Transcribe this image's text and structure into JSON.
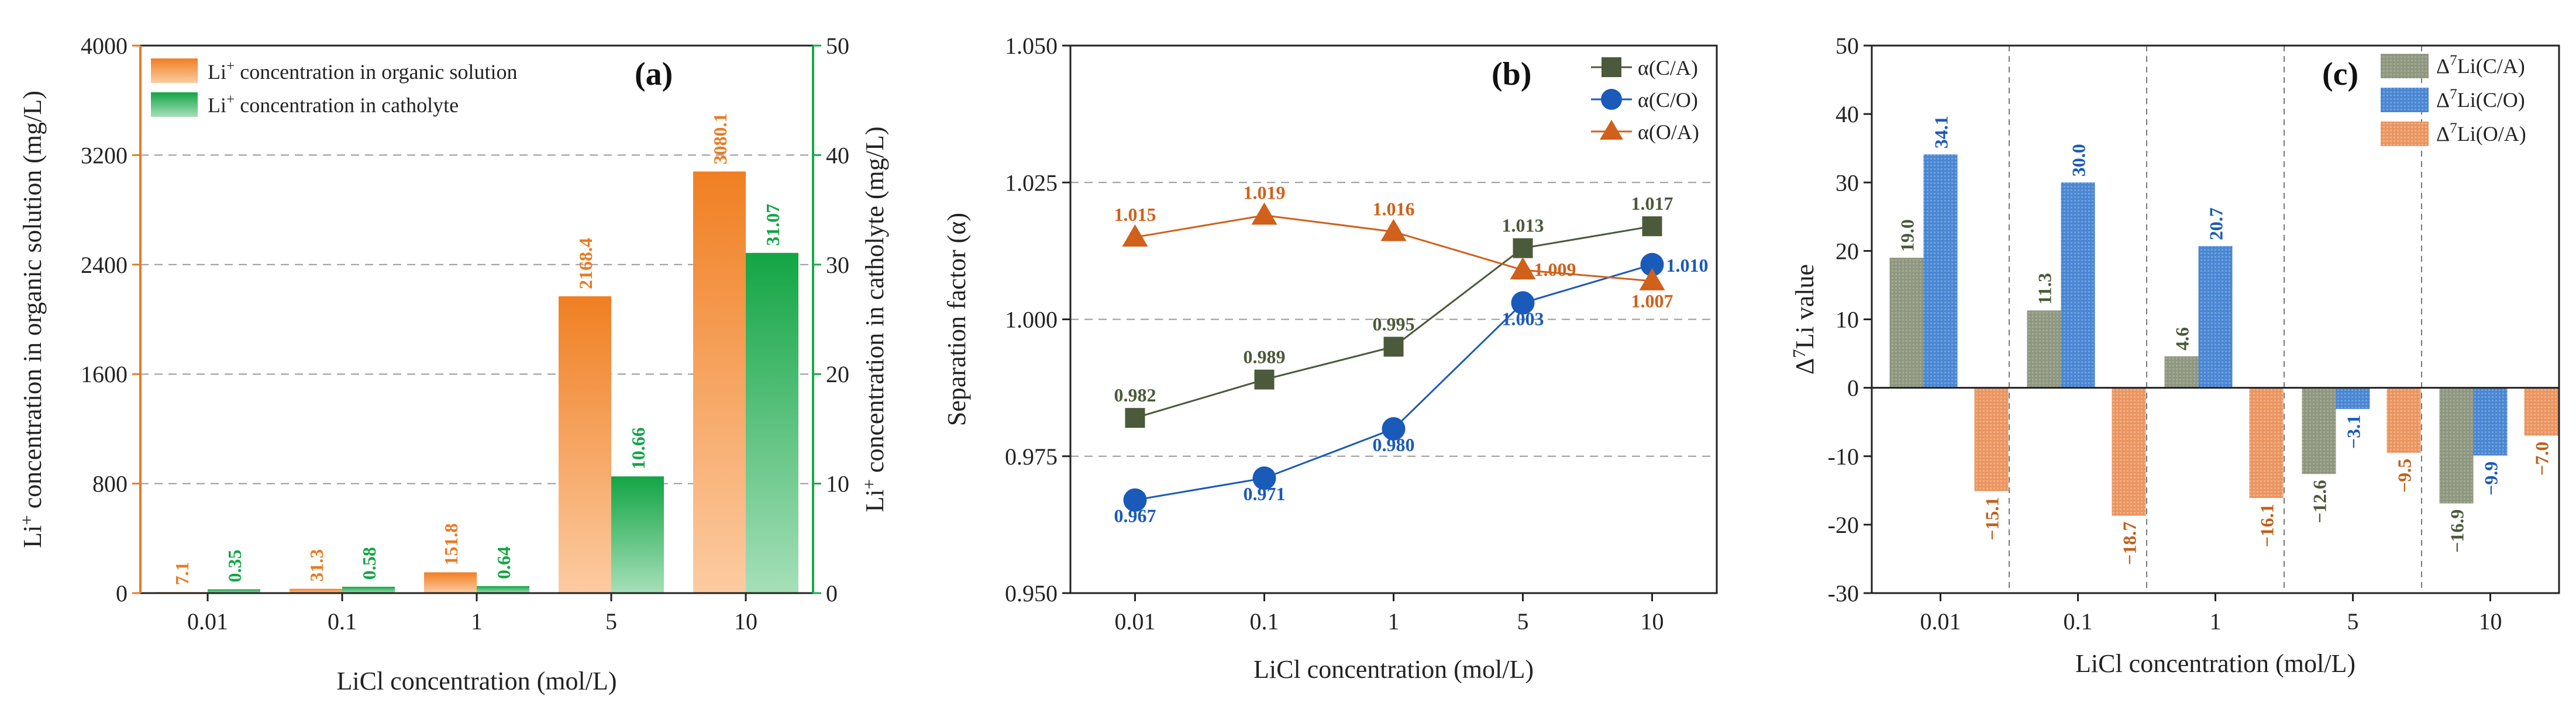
{
  "chart_data": [
    {
      "type": "bar",
      "panel_label": "(a)",
      "categories": [
        "0.01",
        "0.1",
        "1",
        "5",
        "10"
      ],
      "xlabel": "LiCl concentration (mol/L)",
      "ylabel_left_pre": "Li",
      "ylabel_left_sup": "+",
      "ylabel_left_post": " concentration in organic solution (mg/L)",
      "ylabel_right_pre": "Li",
      "ylabel_right_sup": "+",
      "ylabel_right_post": " concentration in catholyte (mg/L)",
      "ylim_left": [
        0,
        4000
      ],
      "yticks_left": [
        "0",
        "800",
        "1600",
        "2400",
        "3200",
        "4000"
      ],
      "ylim_right": [
        0,
        50
      ],
      "yticks_right": [
        "0",
        "10",
        "20",
        "30",
        "40",
        "50"
      ],
      "series": [
        {
          "name_pre": "Li",
          "name_sup": "+",
          "name_post": " concentration in organic solution",
          "axis": "left",
          "color": "#f28a2e",
          "values": [
            7.1,
            31.3,
            151.8,
            2168.4,
            3080.1
          ],
          "labels": [
            "7.1",
            "31.3",
            "151.8",
            "2168.4",
            "3080.1"
          ]
        },
        {
          "name_pre": "Li",
          "name_sup": "+",
          "name_post": " concentration in catholyte",
          "axis": "right",
          "color": "#1aa84a",
          "values": [
            0.35,
            0.58,
            0.64,
            10.66,
            31.07
          ],
          "labels": [
            "0.35",
            "0.58",
            "0.64",
            "10.66",
            "31.07"
          ]
        }
      ],
      "colors": {
        "left_axis": "#e07b2a",
        "right_axis": "#1aa84a"
      }
    },
    {
      "type": "line",
      "panel_label": "(b)",
      "categories": [
        "0.01",
        "0.1",
        "1",
        "5",
        "10"
      ],
      "xlabel": "LiCl concentration (mol/L)",
      "ylabel": "Separation factor (α)",
      "ylim": [
        0.95,
        1.05
      ],
      "yticks": [
        "0.950",
        "0.975",
        "1.000",
        "1.025",
        "1.050"
      ],
      "series": [
        {
          "name": "α(C/A)",
          "marker": "square",
          "color": "#4a5a3a",
          "values": [
            0.982,
            0.989,
            0.995,
            1.013,
            1.017
          ],
          "labels": [
            "0.982",
            "0.989",
            "0.995",
            "1.013",
            "1.017"
          ]
        },
        {
          "name": "α(C/O)",
          "marker": "circle",
          "color": "#1a5ab8",
          "values": [
            0.967,
            0.971,
            0.98,
            1.003,
            1.01
          ],
          "labels": [
            "0.967",
            "0.971",
            "0.980",
            "1.003",
            "1.010"
          ]
        },
        {
          "name": "α(O/A)",
          "marker": "triangle",
          "color": "#d0601a",
          "values": [
            1.015,
            1.019,
            1.016,
            1.009,
            1.007
          ],
          "labels": [
            "1.015",
            "1.019",
            "1.016",
            "1.009",
            "1.007"
          ]
        }
      ]
    },
    {
      "type": "bar",
      "panel_label": "(c)",
      "categories": [
        "0.01",
        "0.1",
        "1",
        "5",
        "10"
      ],
      "xlabel": "LiCl concentration (mol/L)",
      "ylabel_pre": "Δ",
      "ylabel_sup": "7",
      "ylabel_post": "Li value",
      "ylim": [
        -30,
        50
      ],
      "yticks": [
        "-30",
        "-20",
        "-10",
        "0",
        "10",
        "20",
        "30",
        "40",
        "50"
      ],
      "series": [
        {
          "name_pre": "Δ",
          "name_sup": "7",
          "name_post": "Li(C/A)",
          "color": "#8c9478",
          "values": [
            19.0,
            11.3,
            4.6,
            -12.6,
            -16.9
          ],
          "labels": [
            "19.0",
            "11.3",
            "4.6",
            "−12.6",
            "−16.9"
          ]
        },
        {
          "name_pre": "Δ",
          "name_sup": "7",
          "name_post": "Li(C/O)",
          "color": "#4a82cc",
          "values": [
            34.1,
            30.0,
            20.7,
            -3.1,
            -9.9
          ],
          "labels": [
            "34.1",
            "30.0",
            "20.7",
            "−3.1",
            "−9.9"
          ]
        },
        {
          "name_pre": "Δ",
          "name_sup": "7",
          "name_post": "Li(O/A)",
          "color": "#e8905a",
          "values": [
            -15.1,
            -18.7,
            -16.1,
            -9.5,
            -7.0
          ],
          "labels": [
            "−15.1",
            "−18.7",
            "−16.1",
            "−9.5",
            "−7.0"
          ]
        }
      ],
      "label_colors": [
        "#4a5a3a",
        "#1a5ab8",
        "#c0601a"
      ]
    }
  ]
}
